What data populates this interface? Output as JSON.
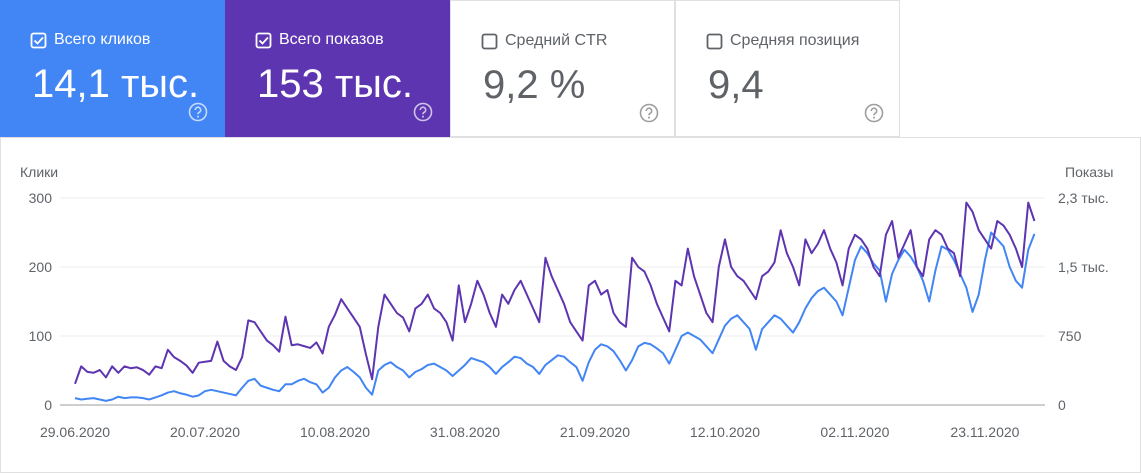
{
  "cards": [
    {
      "label": "Всего кликов",
      "value": "14,1 тыс.",
      "checked": true,
      "color": "#4285f4"
    },
    {
      "label": "Всего показов",
      "value": "153 тыс.",
      "checked": true,
      "color": "#5e35b1"
    },
    {
      "label": "Средний CTR",
      "value": "9,2 %",
      "checked": false,
      "color": "#ffffff"
    },
    {
      "label": "Средняя позиция",
      "value": "9,4",
      "checked": false,
      "color": "#ffffff"
    }
  ],
  "chart_data": {
    "type": "line",
    "y_label": "Клики",
    "y2_label": "Показы",
    "categories": [
      "29.06.2020",
      null,
      null,
      null,
      null,
      null,
      null,
      null,
      null,
      null,
      null,
      null,
      null,
      null,
      null,
      null,
      null,
      null,
      null,
      null,
      null,
      "20.07.2020",
      null,
      null,
      null,
      null,
      null,
      null,
      null,
      null,
      null,
      null,
      null,
      null,
      null,
      null,
      null,
      null,
      null,
      null,
      null,
      null,
      "10.08.2020",
      null,
      null,
      null,
      null,
      null,
      null,
      null,
      null,
      null,
      null,
      null,
      null,
      null,
      null,
      null,
      null,
      null,
      null,
      null,
      null,
      "31.08.2020",
      null,
      null,
      null,
      null,
      null,
      null,
      null,
      null,
      null,
      null,
      null,
      null,
      null,
      null,
      null,
      null,
      null,
      null,
      null,
      null,
      "21.09.2020",
      null,
      null,
      null,
      null,
      null,
      null,
      null,
      null,
      null,
      null,
      null,
      null,
      null,
      null,
      null,
      null,
      null,
      null,
      null,
      null,
      "12.10.2020",
      null,
      null,
      null,
      null,
      null,
      null,
      null,
      null,
      null,
      null,
      null,
      null,
      null,
      null,
      null,
      null,
      null,
      null,
      null,
      null,
      "02.11.2020",
      null,
      null,
      null,
      null,
      null,
      null,
      null,
      null,
      null,
      null,
      null,
      null,
      null,
      null,
      null,
      null,
      null,
      null,
      null,
      null,
      "23.11.2020",
      null,
      null,
      null,
      null,
      null,
      null,
      null,
      null
    ],
    "series": [
      {
        "name": "Всего кликов",
        "color": "#4285f4",
        "axis": "y",
        "values": [
          10,
          8,
          9,
          10,
          8,
          6,
          8,
          12,
          10,
          11,
          11,
          10,
          8,
          11,
          14,
          18,
          20,
          17,
          15,
          12,
          14,
          20,
          22,
          20,
          18,
          16,
          14,
          25,
          35,
          38,
          28,
          25,
          22,
          20,
          30,
          30,
          35,
          38,
          33,
          30,
          18,
          25,
          40,
          50,
          55,
          48,
          40,
          25,
          15,
          50,
          58,
          62,
          55,
          50,
          40,
          48,
          52,
          58,
          60,
          55,
          50,
          42,
          50,
          58,
          68,
          65,
          62,
          55,
          45,
          55,
          62,
          70,
          68,
          60,
          55,
          45,
          58,
          65,
          72,
          70,
          62,
          55,
          35,
          62,
          80,
          88,
          85,
          78,
          65,
          50,
          65,
          85,
          90,
          88,
          82,
          75,
          60,
          80,
          100,
          105,
          100,
          95,
          85,
          75,
          95,
          115,
          125,
          130,
          120,
          110,
          80,
          110,
          120,
          130,
          125,
          115,
          105,
          120,
          140,
          155,
          165,
          170,
          160,
          150,
          130,
          170,
          210,
          230,
          220,
          205,
          195,
          150,
          190,
          210,
          225,
          215,
          200,
          180,
          150,
          195,
          230,
          225,
          210,
          190,
          170,
          135,
          160,
          210,
          250,
          240,
          230,
          200,
          180,
          170,
          225,
          248
        ]
      },
      {
        "name": "Всего показов",
        "color": "#5e35b1",
        "axis": "y2",
        "values": [
          230,
          420,
          360,
          350,
          380,
          300,
          420,
          350,
          420,
          400,
          410,
          380,
          330,
          420,
          400,
          600,
          520,
          480,
          430,
          350,
          460,
          470,
          480,
          690,
          480,
          420,
          380,
          520,
          920,
          900,
          800,
          700,
          650,
          580,
          960,
          650,
          660,
          640,
          620,
          680,
          560,
          850,
          980,
          1150,
          1050,
          950,
          850,
          550,
          280,
          850,
          1200,
          1100,
          1000,
          950,
          800,
          1050,
          1100,
          1200,
          1050,
          1000,
          900,
          700,
          1300,
          900,
          1100,
          1350,
          1200,
          1000,
          850,
          1200,
          1100,
          1250,
          1350,
          1200,
          1050,
          900,
          1600,
          1400,
          1250,
          1100,
          900,
          800,
          700,
          1300,
          1350,
          1200,
          1250,
          1000,
          900,
          850,
          1600,
          1500,
          1450,
          1300,
          1100,
          950,
          800,
          1350,
          1300,
          1700,
          1400,
          1200,
          1000,
          900,
          1500,
          1800,
          1500,
          1400,
          1350,
          1250,
          1150,
          1400,
          1450,
          1550,
          1900,
          1650,
          1500,
          1300,
          1800,
          1650,
          1750,
          1900,
          1700,
          1550,
          1300,
          1700,
          1850,
          1800,
          1700,
          1500,
          1400,
          1850,
          2000,
          1600,
          1750,
          1900,
          1500,
          1400,
          1800,
          1900,
          1850,
          1700,
          1650,
          1400,
          2200,
          2100,
          1900,
          1800,
          1700,
          2000,
          1950,
          1850,
          1700,
          1500,
          2200,
          2000
        ]
      }
    ],
    "ylim": [
      0,
      300
    ],
    "yticks": [
      0,
      100,
      200,
      300
    ],
    "y2lim": [
      0,
      2250
    ],
    "y2ticks": [
      0,
      750,
      {
        "value": 1500,
        "label": "1,5 тыс."
      },
      {
        "value": 2250,
        "label": "2,3 тыс."
      }
    ],
    "grid": true
  }
}
